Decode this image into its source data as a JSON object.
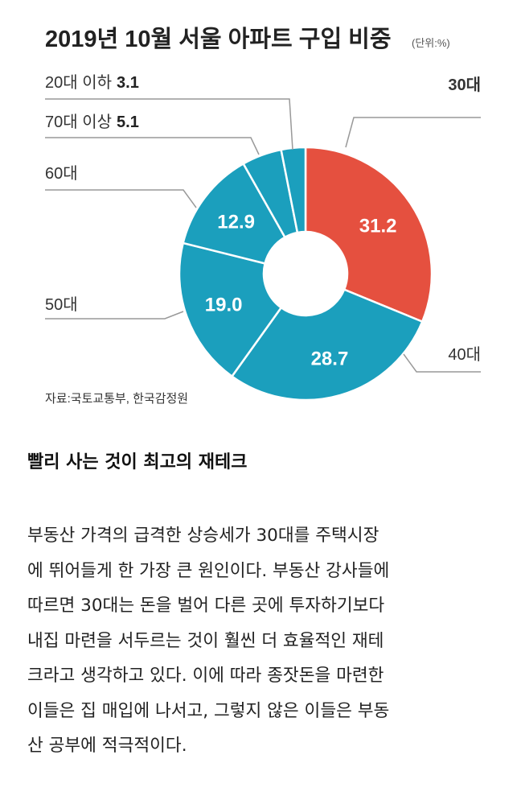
{
  "chart_data": {
    "type": "pie",
    "title": "2019년 10월 서울 아파트 구입 비중",
    "unit": "(단위:%)",
    "source": "자료:국토교통부, 한국감정원",
    "slices": [
      {
        "label": "30대",
        "value": 31.2,
        "value_text": "31.2",
        "color": "#e5503f"
      },
      {
        "label": "40대",
        "value": 28.7,
        "value_text": "28.7",
        "color": "#1b9fbd"
      },
      {
        "label": "50대",
        "value": 19.0,
        "value_text": "19.0",
        "color": "#1b9fbd"
      },
      {
        "label": "60대",
        "value": 12.9,
        "value_text": "12.9",
        "color": "#1b9fbd"
      },
      {
        "label": "70대 이상",
        "value": 5.1,
        "value_text": "5.1",
        "color": "#1b9fbd"
      },
      {
        "label": "20대 이하",
        "value": 3.1,
        "value_text": "3.1",
        "color": "#1b9fbd"
      }
    ]
  },
  "article": {
    "headline": "빨리 사는 것이 최고의 재테크",
    "lines": [
      "부동산 가격의 급격한 상승세가 30대를 주택시장",
      "에 뛰어들게 한 가장 큰 원인이다. 부동산 강사들에",
      "따르면 30대는 돈을 벌어 다른 곳에 투자하기보다",
      "내집 마련을 서두르는 것이 훨씬 더 효율적인 재테",
      "크라고 생각하고 있다. 이에 따라 종잣돈을 마련한",
      "이들은 집 매입에 나서고, 그렇지 않은 이들은 부동",
      "산 공부에 적극적이다."
    ]
  }
}
